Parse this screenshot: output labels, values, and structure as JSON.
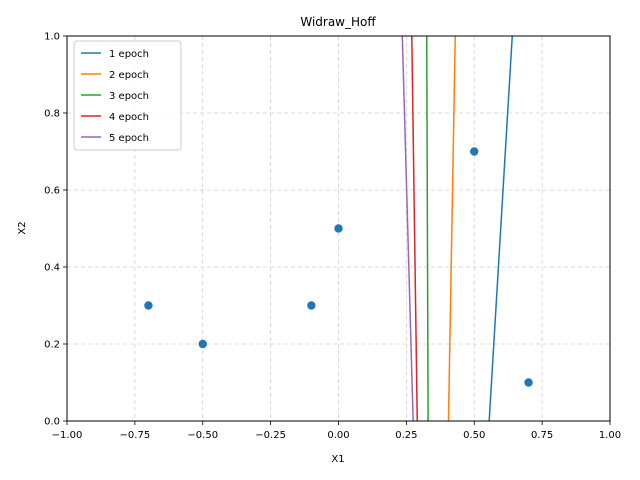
{
  "chart_data": {
    "type": "scatter",
    "title": "Widraw_Hoff",
    "xlabel": "X1",
    "ylabel": "X2",
    "xlim": [
      -1.0,
      1.0
    ],
    "ylim": [
      0.0,
      1.0
    ],
    "xticks": [
      "−1.00",
      "−0.75",
      "−0.50",
      "−0.25",
      "0.00",
      "0.25",
      "0.50",
      "0.75",
      "1.00"
    ],
    "xtick_values": [
      -1.0,
      -0.75,
      -0.5,
      -0.25,
      0.0,
      0.25,
      0.5,
      0.75,
      1.0
    ],
    "yticks": [
      "0.0",
      "0.2",
      "0.4",
      "0.6",
      "0.8",
      "1.0"
    ],
    "ytick_values": [
      0.0,
      0.2,
      0.4,
      0.6,
      0.8,
      1.0
    ],
    "grid": true,
    "legend_position": "top-left",
    "points": {
      "color": "#1f77b4",
      "x": [
        -0.7,
        -0.5,
        -0.1,
        0.0,
        0.5,
        0.7
      ],
      "y": [
        0.3,
        0.2,
        0.3,
        0.5,
        0.7,
        0.1
      ]
    },
    "series": [
      {
        "name": "1 epoch",
        "color": "#1f77b4",
        "x": [
          0.555,
          0.64
        ],
        "y": [
          0.0,
          1.0
        ]
      },
      {
        "name": "2 epoch",
        "color": "#ff7f0e",
        "x": [
          0.405,
          0.43
        ],
        "y": [
          0.0,
          1.0
        ]
      },
      {
        "name": "3 epoch",
        "color": "#2ca02c",
        "x": [
          0.33,
          0.325
        ],
        "y": [
          0.0,
          1.0
        ]
      },
      {
        "name": "4 epoch",
        "color": "#d62728",
        "x": [
          0.29,
          0.27
        ],
        "y": [
          0.0,
          1.0
        ]
      },
      {
        "name": "5 epoch",
        "color": "#9467bd",
        "x": [
          0.275,
          0.235
        ],
        "y": [
          0.0,
          1.0
        ]
      }
    ]
  }
}
